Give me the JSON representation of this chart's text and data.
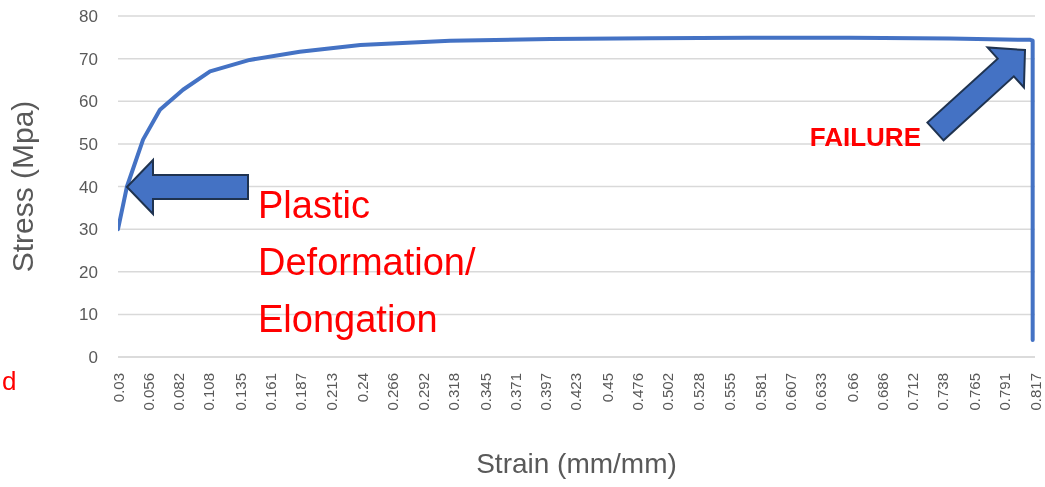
{
  "chart_data": {
    "type": "line",
    "xlabel": "Strain (mm/mm)",
    "ylabel": "Stress (Mpa)",
    "series": [
      {
        "color": "#4472c4",
        "x": [
          0.03,
          0.0377,
          0.0515,
          0.066,
          0.0858,
          0.109,
          0.143,
          0.186,
          0.238,
          0.315,
          0.401,
          0.487,
          0.572,
          0.658,
          0.744,
          0.813,
          0.815,
          0.815
        ],
        "values": [
          30,
          40,
          51,
          58,
          62.7,
          67,
          69.7,
          71.6,
          73.2,
          74.2,
          74.6,
          74.8,
          74.9,
          74.9,
          74.7,
          74.4,
          74.2,
          4
        ]
      }
    ],
    "xlim": [
      0.03,
      0.817
    ],
    "xticks": [
      0.03,
      0.056,
      0.082,
      0.108,
      0.135,
      0.161,
      0.187,
      0.213,
      0.24,
      0.266,
      0.292,
      0.318,
      0.345,
      0.371,
      0.397,
      0.423,
      0.45,
      0.476,
      0.502,
      0.528,
      0.555,
      0.581,
      0.607,
      0.633,
      0.66,
      0.686,
      0.712,
      0.738,
      0.765,
      0.791,
      0.817
    ],
    "ylim": [
      0,
      80
    ],
    "yticks": [
      0,
      10,
      20,
      30,
      40,
      50,
      60,
      70,
      80
    ],
    "grid": "y",
    "line_style": "solid",
    "annotations": [
      "Plastic Deformation/ Elongation",
      "FAILURE",
      "d"
    ]
  }
}
